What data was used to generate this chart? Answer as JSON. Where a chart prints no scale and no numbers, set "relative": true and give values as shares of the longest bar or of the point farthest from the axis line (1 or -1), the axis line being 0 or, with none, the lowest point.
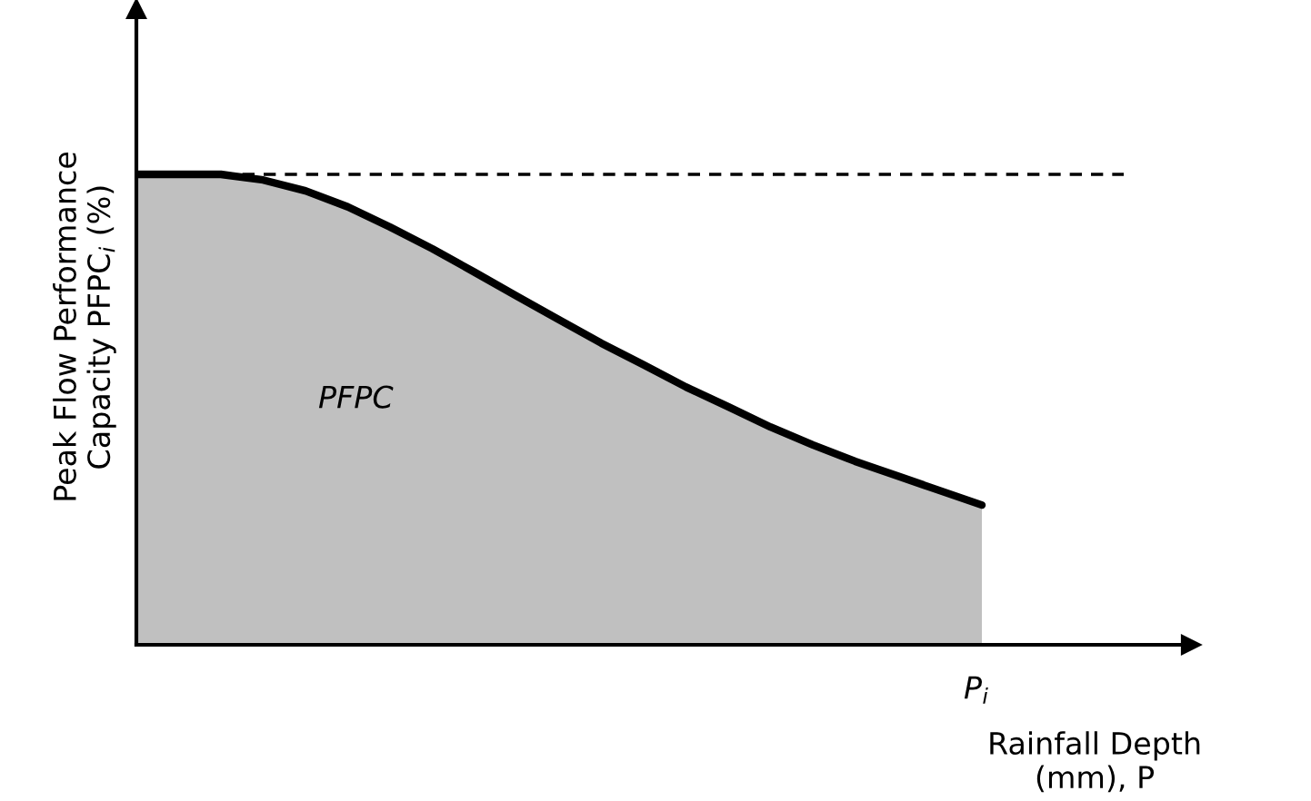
{
  "chart_data": {
    "type": "area",
    "relative": true,
    "categories": [
      null,
      null,
      null,
      null,
      null,
      null,
      null,
      null,
      null,
      null,
      null,
      null,
      null,
      null,
      null,
      null,
      null,
      null,
      null,
      null,
      null
    ],
    "series": [
      {
        "color": "#c0c0c0",
        "values": [
          1.0,
          1.0,
          1.0,
          0.988,
          0.965,
          0.931,
          0.888,
          0.842,
          0.792,
          0.741,
          0.691,
          0.641,
          0.595,
          0.548,
          0.506,
          0.463,
          0.425,
          0.39,
          0.359,
          0.328,
          0.297
        ]
      }
    ],
    "ylabel": "Peak Flow Performance\nCapacity PFPC$_{i}$ (%)",
    "xlabel": "Rainfall Depth\n(mm), P",
    "annotations": [
      "PFPC",
      "P$_{i}$"
    ],
    "ref_lines": [
      {
        "axis": "y",
        "value": 1,
        "color": "#000000",
        "line_style": "dashed"
      }
    ],
    "legend": false,
    "tick_labels": false
  }
}
